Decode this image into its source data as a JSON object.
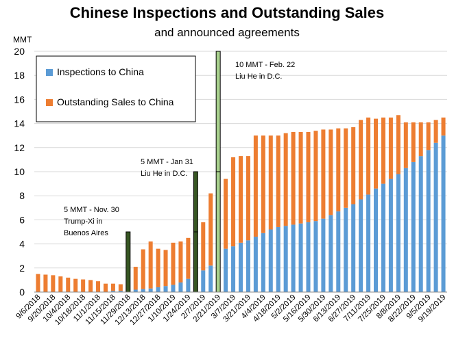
{
  "chart_data": {
    "type": "bar",
    "title": "Chinese Inspections and Outstanding Sales",
    "subtitle": "and announced agreements",
    "ylabel": "MMT",
    "ylim": [
      0,
      20
    ],
    "y_ticks": [
      0,
      2,
      4,
      6,
      8,
      10,
      12,
      14,
      16,
      18,
      20
    ],
    "grid": true,
    "legend_position": "top-left",
    "categories": [
      "9/6/2018",
      "9/13/2018",
      "9/20/2018",
      "9/27/2018",
      "10/4/2018",
      "10/11/2018",
      "10/18/2018",
      "10/25/2018",
      "11/1/2018",
      "11/8/2018",
      "11/15/2018",
      "11/22/2018",
      "11/29/2018",
      "12/6/2018",
      "12/13/2018",
      "12/20/2018",
      "12/27/2018",
      "1/3/2019",
      "1/10/2019",
      "1/17/2019",
      "1/24/2019",
      "1/31/2019",
      "2/7/2019",
      "2/14/2019",
      "2/21/2019",
      "2/28/2019",
      "3/7/2019",
      "3/14/2019",
      "3/21/2019",
      "3/28/2019",
      "4/4/2019",
      "4/11/2019",
      "4/18/2019",
      "4/25/2019",
      "5/2/2019",
      "5/9/2019",
      "5/16/2019",
      "5/23/2019",
      "5/30/2019",
      "6/6/2019",
      "6/13/2019",
      "6/20/2019",
      "6/27/2019",
      "7/4/2019",
      "7/11/2019",
      "7/18/2019",
      "7/25/2019",
      "8/1/2019",
      "8/8/2019",
      "8/15/2019",
      "8/22/2019",
      "8/29/2019",
      "9/5/2019",
      "9/12/2019",
      "9/19/2019"
    ],
    "x_tick_labels": [
      "9/6/2018",
      "9/20/2018",
      "10/4/2018",
      "10/18/2018",
      "11/1/2018",
      "11/15/2018",
      "11/29/2018",
      "12/13/2018",
      "12/27/2018",
      "1/10/2019",
      "1/24/2019",
      "2/7/2019",
      "2/21/2019",
      "3/7/2019",
      "3/21/2019",
      "4/4/2019",
      "4/18/2019",
      "5/2/2019",
      "5/16/2019",
      "5/30/2019",
      "6/13/2019",
      "6/27/2019",
      "7/11/2019",
      "7/25/2019",
      "8/8/2019",
      "8/22/2019",
      "9/5/2019",
      "9/19/2019"
    ],
    "series": [
      {
        "name": "Inspections to China",
        "color": "#5b9bd5",
        "values": [
          0,
          0,
          0,
          0,
          0,
          0,
          0,
          0,
          0,
          0,
          0.1,
          0.1,
          0.2,
          0.2,
          0.25,
          0.3,
          0.4,
          0.5,
          0.6,
          0.8,
          1.1,
          1.3,
          1.8,
          2.2,
          2.7,
          3.6,
          3.8,
          4.1,
          4.3,
          4.6,
          4.9,
          5.2,
          5.4,
          5.5,
          5.6,
          5.7,
          5.8,
          5.9,
          6.1,
          6.4,
          6.7,
          7.0,
          7.3,
          7.7,
          8.1,
          8.6,
          9.0,
          9.4,
          9.8,
          10.3,
          10.8,
          11.3,
          11.8,
          12.4,
          13.0
        ]
      },
      {
        "name": "Outstanding Sales to China",
        "color": "#ed7d31",
        "values": [
          1.5,
          1.45,
          1.4,
          1.3,
          1.2,
          1.1,
          1.05,
          1.0,
          0.9,
          0.7,
          0.6,
          0.55,
          0.4,
          1.9,
          3.3,
          3.9,
          3.2,
          3.0,
          3.5,
          3.4,
          3.4,
          4.1,
          4.0,
          6.0,
          6.6,
          5.8,
          7.4,
          7.2,
          7.0,
          8.4,
          8.1,
          7.8,
          7.6,
          7.7,
          7.7,
          7.6,
          7.5,
          7.5,
          7.4,
          7.1,
          6.9,
          6.6,
          6.4,
          6.6,
          6.4,
          5.8,
          5.5,
          5.1,
          4.9,
          3.8,
          3.3,
          2.8,
          2.3,
          1.9,
          1.5
        ]
      }
    ],
    "annotations": [
      {
        "name": "Nov. 30 agreement",
        "date": "11/29/2018",
        "value": 5,
        "color": "#375623",
        "lines": [
          "5 MMT - Nov. 30",
          "Trump-Xi in",
          "Buenos Aires"
        ]
      },
      {
        "name": "Jan 31 agreement",
        "date": "1/31/2019",
        "value": 5,
        "base": 5,
        "color": "#375623",
        "lines": [
          "5 MMT - Jan 31",
          "Liu He in D.C."
        ]
      },
      {
        "name": "Feb. 22 agreement",
        "date": "2/21/2019",
        "value": 10,
        "base": 10,
        "color": "#a9d18e",
        "lines": [
          "10 MMT - Feb. 22",
          "Liu He in D.C."
        ]
      }
    ]
  }
}
